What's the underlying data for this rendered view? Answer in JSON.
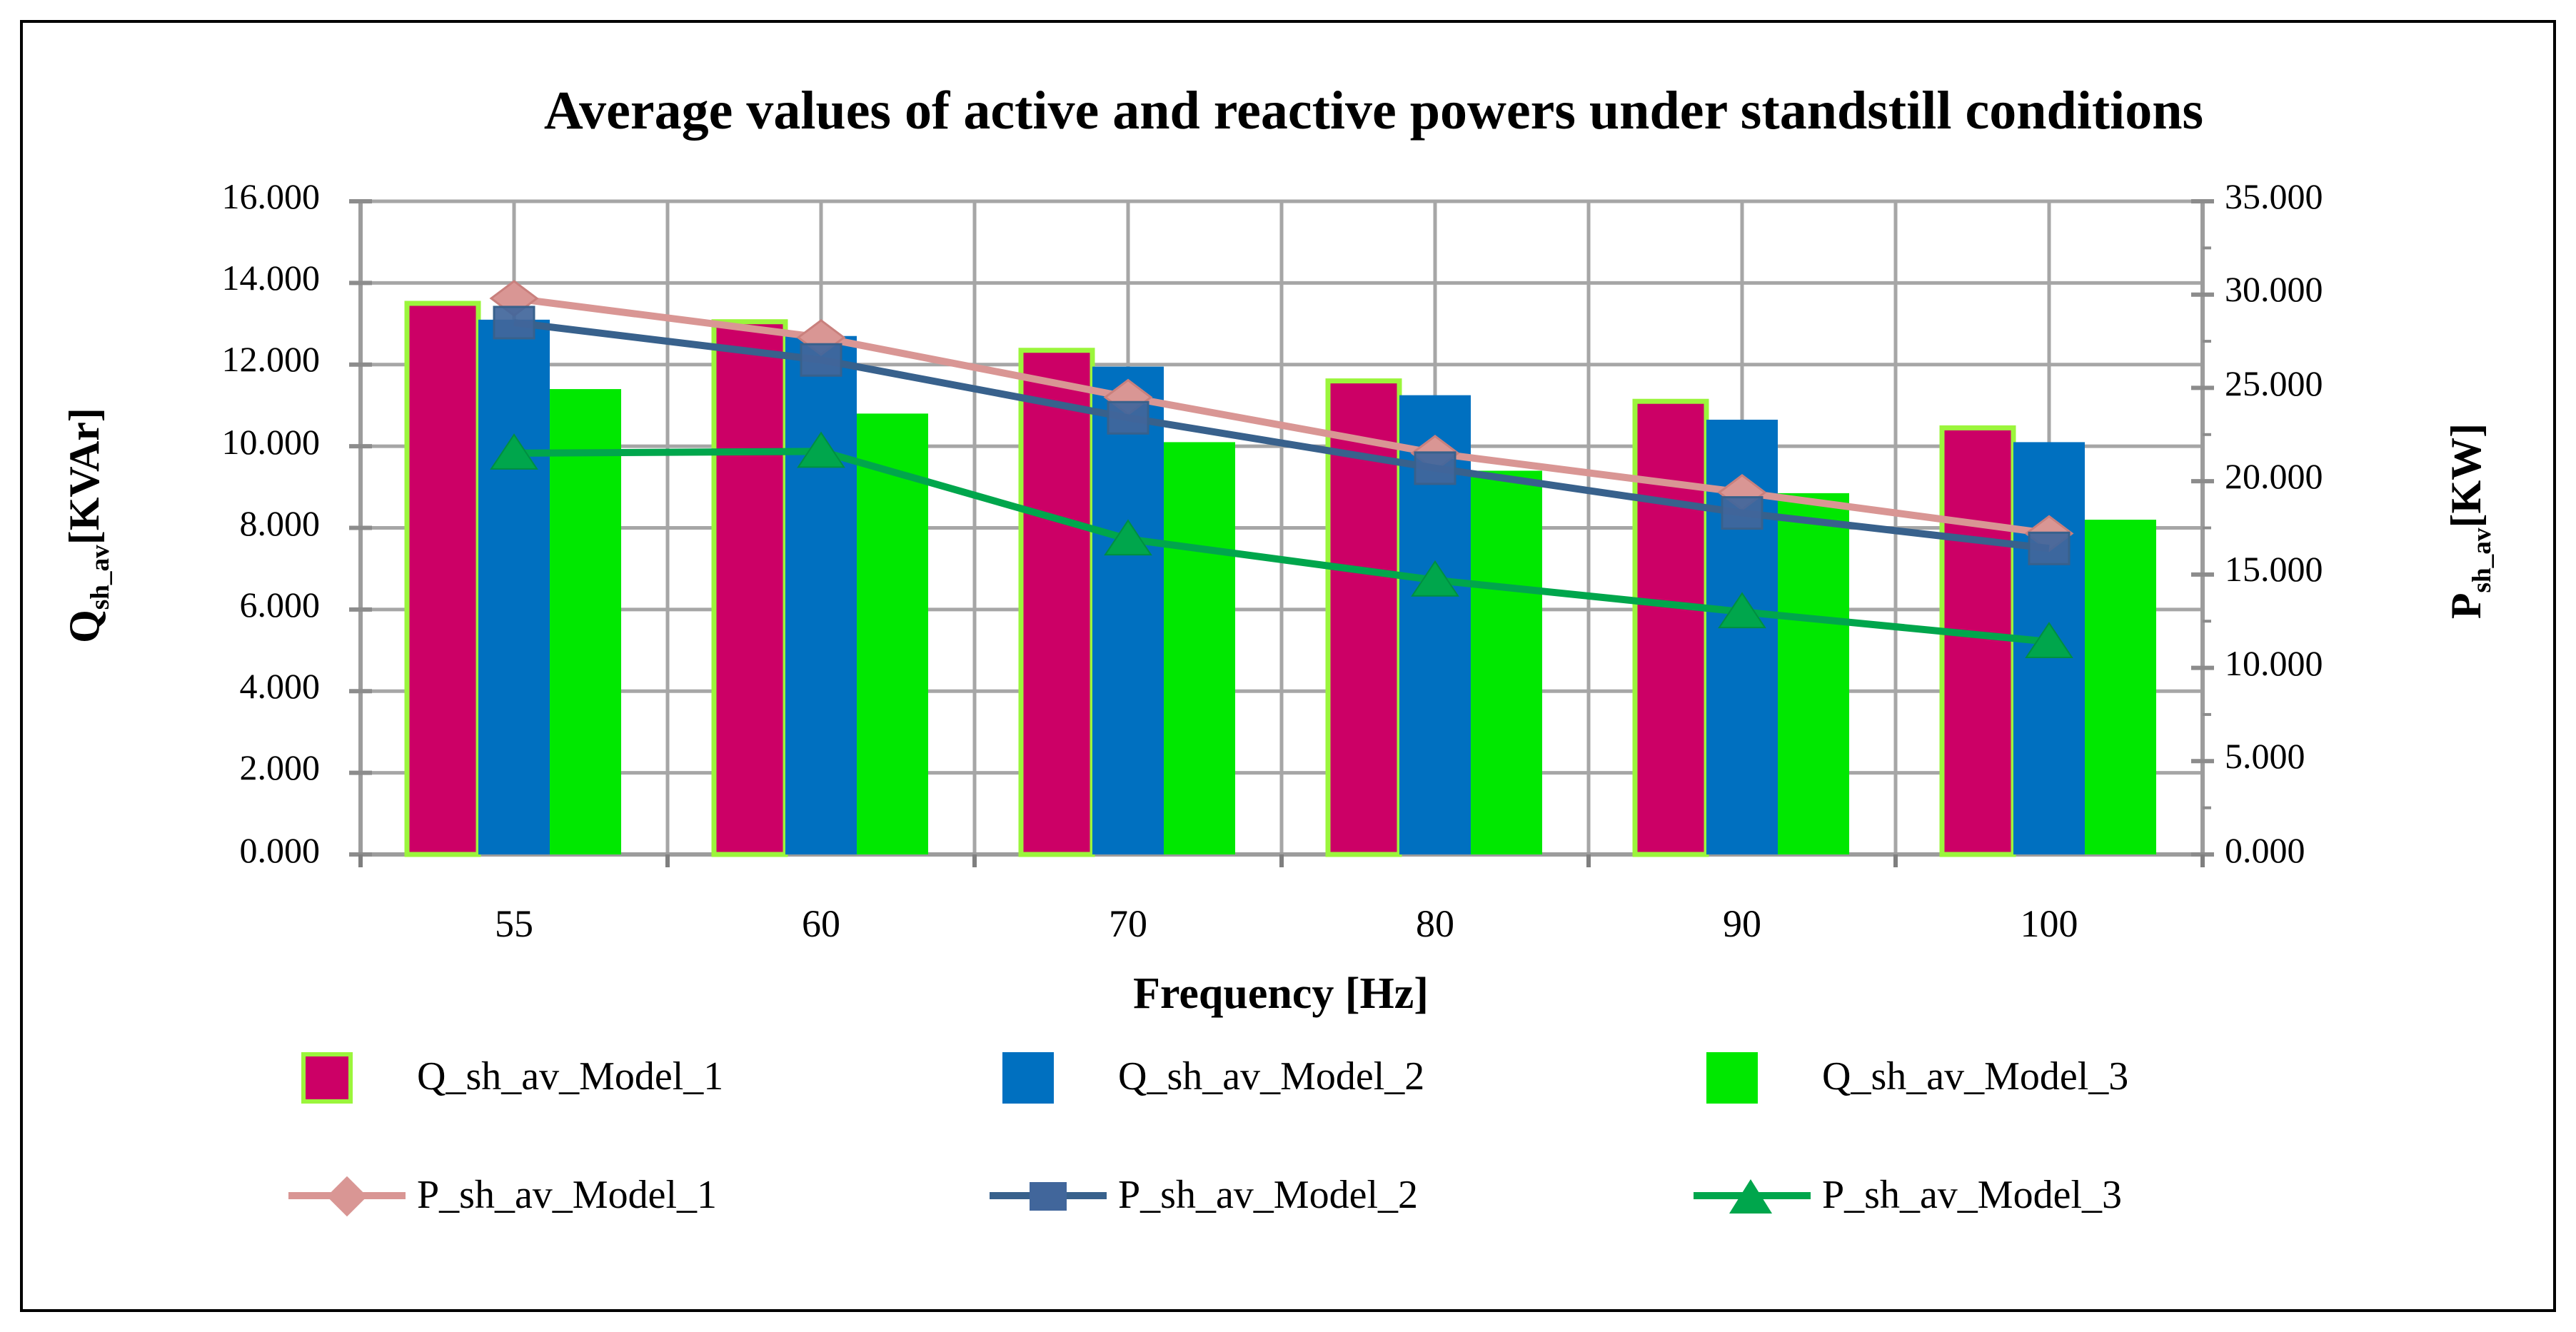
{
  "chart_data": {
    "type": "combo-bar-line",
    "title": "Average values of active and reactive powers under standstill conditions",
    "xlabel": "Frequency [Hz]",
    "categories": [
      "55",
      "60",
      "70",
      "80",
      "90",
      "100"
    ],
    "left_axis": {
      "label_pre": "Q",
      "label_sub": "sh_av",
      "label_post": "[KVAr]",
      "min": 0,
      "max": 16,
      "step": 2,
      "tick_labels": [
        "16.000",
        "14.000",
        "12.000",
        "10.000",
        "8.000",
        "6.000",
        "4.000",
        "2.000",
        "0.000"
      ]
    },
    "right_axis": {
      "label_pre": "P",
      "label_sub": "sh_av",
      "label_post": "[KW]",
      "min": 0,
      "max": 35,
      "step": 5,
      "minor_step": 2.5,
      "tick_labels": [
        "35.000",
        "30.000",
        "25.000",
        "20.000",
        "15.000",
        "10.000",
        "5.000",
        "0.000"
      ]
    },
    "grid": true,
    "legend_position": "bottom",
    "bar_series": [
      {
        "name": "Q_sh_av_Model_1",
        "axis": "left",
        "color": "#CC0066",
        "border_color": "#9BF53C",
        "values": [
          13.5,
          13.05,
          12.35,
          11.6,
          11.1,
          10.45
        ]
      },
      {
        "name": "Q_sh_av_Model_2",
        "axis": "left",
        "color": "#0070C0",
        "values": [
          13.1,
          12.7,
          11.95,
          11.25,
          10.65,
          10.1
        ]
      },
      {
        "name": "Q_sh_av_Model_3",
        "axis": "left",
        "color": "#00E800",
        "values": [
          11.4,
          10.8,
          10.1,
          9.4,
          8.85,
          8.2
        ]
      }
    ],
    "line_series": [
      {
        "name": "P_sh_av_Model_1",
        "axis": "right",
        "color": "#D99694",
        "marker": "diamond",
        "marker_color": "#D99694",
        "values": [
          29.8,
          27.7,
          24.5,
          21.5,
          19.4,
          17.2
        ]
      },
      {
        "name": "P_sh_av_Model_2",
        "axis": "right",
        "color": "#38618C",
        "marker": "square",
        "marker_color": "#41669B",
        "values": [
          28.5,
          26.5,
          23.4,
          20.7,
          18.3,
          16.4
        ]
      },
      {
        "name": "P_sh_av_Model_3",
        "axis": "right",
        "color": "#00A64C",
        "marker": "triangle",
        "marker_color": "#00A64C",
        "values": [
          21.5,
          21.6,
          16.9,
          14.7,
          13.0,
          11.4
        ]
      }
    ]
  },
  "colors": {
    "gridline": "#A6A6A6",
    "axis_line": "#9C9C9C",
    "tick": "#8C8C8C",
    "boundary_tick": "#7F7F7F",
    "frame": "#000000",
    "background": "#FFFFFF",
    "text": "#000000"
  }
}
